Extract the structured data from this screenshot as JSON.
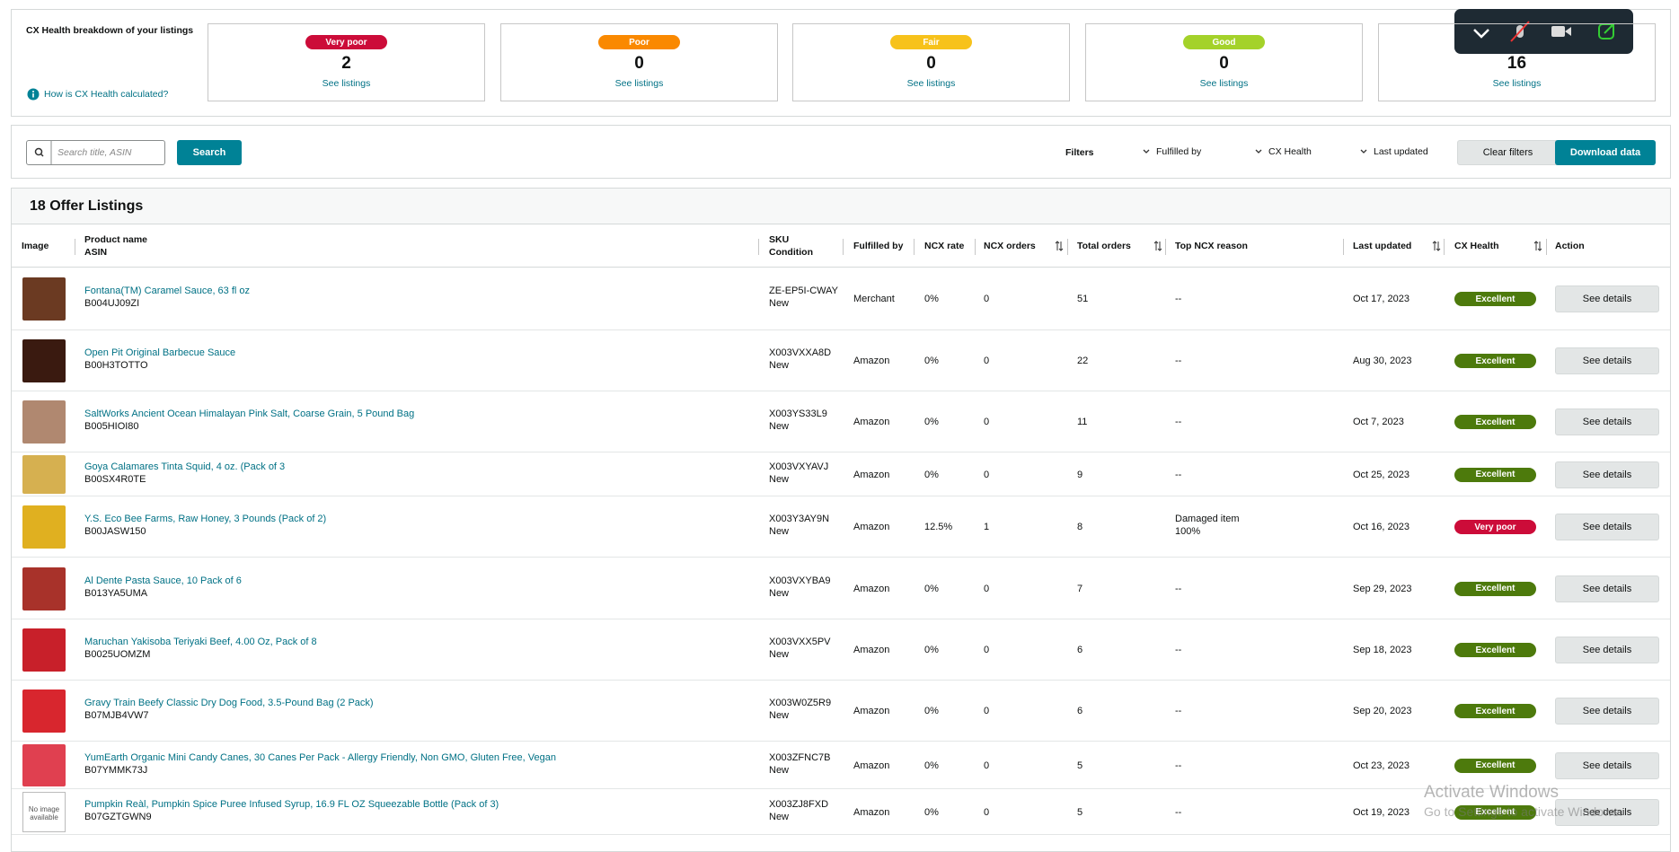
{
  "breakdown": {
    "title": "CX Health breakdown of your listings",
    "help_link": "How is CX Health calculated?",
    "cards": [
      {
        "label": "Very poor",
        "color": "#cc0c39",
        "count": 2,
        "link": "See listings"
      },
      {
        "label": "Poor",
        "color": "#fa8900",
        "count": 0,
        "link": "See listings"
      },
      {
        "label": "Fair",
        "color": "#f7c21b",
        "count": 0,
        "link": "See listings"
      },
      {
        "label": "Good",
        "color": "#a4d22a",
        "count": 0,
        "link": "See listings"
      },
      {
        "count": 16,
        "link": "See listings"
      }
    ]
  },
  "toolbar": {
    "search_placeholder": "Search title, ASIN",
    "search_button": "Search",
    "filters_label": "Filters",
    "filters": [
      "Fulfilled by",
      "CX Health",
      "Last updated"
    ],
    "clear": "Clear filters",
    "download": "Download data"
  },
  "table": {
    "title": "18 Offer Listings",
    "columns": [
      {
        "label": "Image"
      },
      {
        "label": "Product name",
        "sub": "ASIN"
      },
      {
        "label": "SKU",
        "sub": "Condition"
      },
      {
        "label": "Fulfilled by"
      },
      {
        "label": "NCX rate"
      },
      {
        "label": "NCX orders",
        "sortable": true
      },
      {
        "label": "Total orders",
        "sortable": true
      },
      {
        "label": "Top NCX reason"
      },
      {
        "label": "Last updated",
        "sortable": true
      },
      {
        "label": "CX Health",
        "sortable": true
      },
      {
        "label": "Action"
      }
    ],
    "rows": [
      {
        "name": "Fontana(TM) Caramel Sauce, 63 fl oz",
        "asin": "B004UJ09ZI",
        "sku": "ZE-EP5I-CWAY",
        "condition": "New",
        "fulfilled": "Merchant",
        "ncx_rate": "0%",
        "ncx_orders": "0",
        "total_orders": "51",
        "reason": [
          "--"
        ],
        "updated": "Oct 17, 2023",
        "health": "Excellent",
        "health_color": "#4d7a0c",
        "action": "See details",
        "thumb": "#6b3a22"
      },
      {
        "name": "Open Pit Original Barbecue Sauce",
        "asin": "B00H3TOTTO",
        "sku": "X003VXXA8D",
        "condition": "New",
        "fulfilled": "Amazon",
        "ncx_rate": "0%",
        "ncx_orders": "0",
        "total_orders": "22",
        "reason": [
          "--"
        ],
        "updated": "Aug 30, 2023",
        "health": "Excellent",
        "health_color": "#4d7a0c",
        "action": "See details",
        "thumb": "#3a1a10"
      },
      {
        "name": "SaltWorks Ancient Ocean Himalayan Pink Salt, Coarse Grain, 5 Pound Bag",
        "asin": "B005HIOI80",
        "sku": "X003YS33L9",
        "condition": "New",
        "fulfilled": "Amazon",
        "ncx_rate": "0%",
        "ncx_orders": "0",
        "total_orders": "11",
        "reason": [
          "--"
        ],
        "updated": "Oct 7, 2023",
        "health": "Excellent",
        "health_color": "#4d7a0c",
        "action": "See details",
        "thumb": "#b08870"
      },
      {
        "name": "Goya Calamares Tinta Squid, 4 oz. (Pack of 3",
        "asin": "B00SX4R0TE",
        "sku": "X003VXYAVJ",
        "condition": "New",
        "fulfilled": "Amazon",
        "ncx_rate": "0%",
        "ncx_orders": "0",
        "total_orders": "9",
        "reason": [
          "--"
        ],
        "updated": "Oct 25, 2023",
        "health": "Excellent",
        "health_color": "#4d7a0c",
        "action": "See details",
        "thumb": "#d6b050"
      },
      {
        "name": "Y.S. Eco Bee Farms, Raw Honey, 3 Pounds (Pack of 2)",
        "asin": "B00JASW150",
        "sku": "X003Y3AY9N",
        "condition": "New",
        "fulfilled": "Amazon",
        "ncx_rate": "12.5%",
        "ncx_orders": "1",
        "total_orders": "8",
        "reason": [
          "Damaged item",
          "100%"
        ],
        "updated": "Oct 16, 2023",
        "health": "Very poor",
        "health_color": "#cc0c39",
        "action": "See details",
        "thumb": "#e0b020"
      },
      {
        "name": "Al Dente Pasta Sauce, 10 Pack of 6",
        "asin": "B013YA5UMA",
        "sku": "X003VXYBA9",
        "condition": "New",
        "fulfilled": "Amazon",
        "ncx_rate": "0%",
        "ncx_orders": "0",
        "total_orders": "7",
        "reason": [
          "--"
        ],
        "updated": "Sep 29, 2023",
        "health": "Excellent",
        "health_color": "#4d7a0c",
        "action": "See details",
        "thumb": "#a8322a"
      },
      {
        "name": "Maruchan Yakisoba Teriyaki Beef, 4.00 Oz, Pack of 8",
        "asin": "B0025UOMZM",
        "sku": "X003VXX5PV",
        "condition": "New",
        "fulfilled": "Amazon",
        "ncx_rate": "0%",
        "ncx_orders": "0",
        "total_orders": "6",
        "reason": [
          "--"
        ],
        "updated": "Sep 18, 2023",
        "health": "Excellent",
        "health_color": "#4d7a0c",
        "action": "See details",
        "thumb": "#c8202a"
      },
      {
        "name": "Gravy Train Beefy Classic Dry Dog Food, 3.5-Pound Bag (2 Pack)",
        "asin": "B07MJB4VW7",
        "sku": "X003W0Z5R9",
        "condition": "New",
        "fulfilled": "Amazon",
        "ncx_rate": "0%",
        "ncx_orders": "0",
        "total_orders": "6",
        "reason": [
          "--"
        ],
        "updated": "Sep 20, 2023",
        "health": "Excellent",
        "health_color": "#4d7a0c",
        "action": "See details",
        "thumb": "#d8262e"
      },
      {
        "name": "YumEarth Organic Mini Candy Canes, 30 Canes Per Pack - Allergy Friendly, Non GMO, Gluten Free, Vegan",
        "asin": "B07YMMK73J",
        "sku": "X003ZFNC7B",
        "condition": "New",
        "fulfilled": "Amazon",
        "ncx_rate": "0%",
        "ncx_orders": "0",
        "total_orders": "5",
        "reason": [
          "--"
        ],
        "updated": "Oct 23, 2023",
        "health": "Excellent",
        "health_color": "#4d7a0c",
        "action": "See details",
        "thumb": "#e04050"
      },
      {
        "name": "Pumpkin Reàl, Pumpkin Spice Puree Infused Syrup, 16.9 FL OZ Squeezable Bottle (Pack of 3)",
        "asin": "B07GZTGWN9",
        "sku": "X003ZJ8FXD",
        "condition": "New",
        "fulfilled": "Amazon",
        "ncx_rate": "0%",
        "ncx_orders": "0",
        "total_orders": "5",
        "reason": [
          "--"
        ],
        "updated": "Oct 19, 2023",
        "health": "Excellent",
        "health_color": "#4d7a0c",
        "action": "See details",
        "image_text": "No image available"
      }
    ]
  },
  "watermark": {
    "title": "Activate Windows",
    "text": "Go to Settings to activate Windows."
  }
}
